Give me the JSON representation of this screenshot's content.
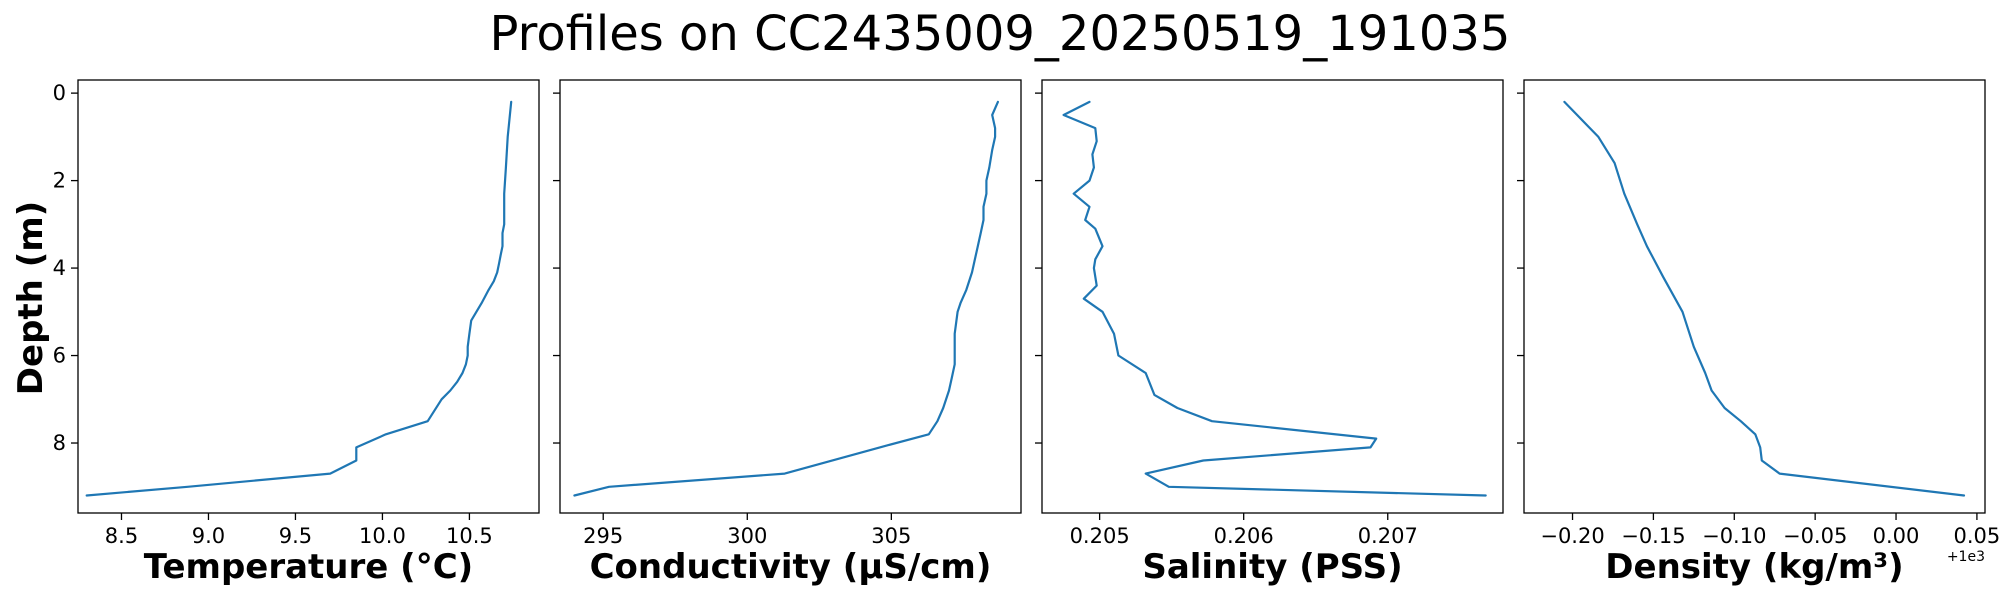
{
  "figure": {
    "title": "Profiles on CC2435009_20250519_191035",
    "line_color": "#1f77b4"
  },
  "chart_data": [
    {
      "type": "line",
      "xlabel": "Temperature (°C)",
      "ylabel": "Depth (m)",
      "xlim": [
        8.25,
        10.9
      ],
      "ylim": [
        9.6,
        -0.3
      ],
      "xticks": [
        8.5,
        9.0,
        9.5,
        10.0,
        10.5
      ],
      "xtick_labels": [
        "8.5",
        "9.0",
        "9.5",
        "10.0",
        "10.5"
      ],
      "yticks": [
        0,
        2,
        4,
        6,
        8
      ],
      "ytick_labels": [
        "0",
        "2",
        "4",
        "6",
        "8"
      ],
      "x_offset_label": "",
      "x": [
        10.74,
        10.72,
        10.71,
        10.7,
        10.7,
        10.7,
        10.69,
        10.69,
        10.68,
        10.67,
        10.66,
        10.64,
        10.61,
        10.57,
        10.54,
        10.51,
        10.5,
        10.49,
        10.49,
        10.48,
        10.46,
        10.43,
        10.39,
        10.34,
        10.26,
        10.02,
        9.85,
        9.85,
        9.7,
        8.88,
        8.3
      ],
      "y": [
        0.2,
        1.0,
        1.7,
        2.3,
        2.6,
        3.0,
        3.2,
        3.5,
        3.7,
        3.9,
        4.1,
        4.3,
        4.5,
        4.8,
        5.0,
        5.2,
        5.5,
        5.8,
        6.0,
        6.2,
        6.4,
        6.6,
        6.8,
        7.0,
        7.5,
        7.8,
        8.1,
        8.4,
        8.7,
        9.0,
        9.2
      ]
    },
    {
      "type": "line",
      "xlabel": "Conductivity (µS/cm)",
      "ylabel": "",
      "xlim": [
        293.5,
        309.5
      ],
      "ylim": [
        9.6,
        -0.3
      ],
      "xticks": [
        295,
        300,
        305
      ],
      "xtick_labels": [
        "295",
        "300",
        "305"
      ],
      "yticks": [
        0,
        2,
        4,
        6,
        8
      ],
      "ytick_labels": [],
      "x_offset_label": "",
      "x": [
        308.7,
        308.5,
        308.6,
        308.6,
        308.5,
        308.4,
        308.3,
        308.3,
        308.2,
        308.2,
        308.1,
        308.0,
        307.9,
        307.8,
        307.6,
        307.4,
        307.3,
        307.2,
        307.2,
        307.2,
        307.1,
        307.0,
        306.8,
        306.6,
        306.3,
        304.6,
        301.3,
        295.2,
        294.0
      ],
      "y": [
        0.2,
        0.5,
        0.8,
        1.0,
        1.3,
        1.7,
        2.0,
        2.3,
        2.6,
        2.9,
        3.2,
        3.5,
        3.8,
        4.1,
        4.5,
        4.8,
        5.0,
        5.5,
        6.0,
        6.2,
        6.5,
        6.8,
        7.2,
        7.5,
        7.8,
        8.1,
        8.7,
        9.0,
        9.2
      ]
    },
    {
      "type": "line",
      "xlabel": "Salinity (PSS)",
      "ylabel": "",
      "xlim": [
        0.2046,
        0.2078
      ],
      "ylim": [
        9.6,
        -0.3
      ],
      "xticks": [
        0.205,
        0.206,
        0.207
      ],
      "xtick_labels": [
        "0.205",
        "0.206",
        "0.207"
      ],
      "yticks": [
        0,
        2,
        4,
        6,
        8
      ],
      "ytick_labels": [],
      "x_offset_label": "",
      "x": [
        0.20493,
        0.20475,
        0.20497,
        0.20498,
        0.20495,
        0.20496,
        0.20493,
        0.20482,
        0.20493,
        0.2049,
        0.20497,
        0.20502,
        0.20497,
        0.20496,
        0.20498,
        0.20489,
        0.20502,
        0.2051,
        0.20513,
        0.20532,
        0.20538,
        0.20554,
        0.20578,
        0.20692,
        0.20688,
        0.20572,
        0.20532,
        0.20548,
        0.20768
      ],
      "y": [
        0.2,
        0.5,
        0.8,
        1.1,
        1.4,
        1.7,
        2.0,
        2.3,
        2.6,
        2.9,
        3.1,
        3.5,
        3.8,
        4.0,
        4.4,
        4.7,
        5.0,
        5.5,
        6.0,
        6.4,
        6.9,
        7.2,
        7.5,
        7.9,
        8.1,
        8.4,
        8.7,
        9.0,
        9.2
      ]
    },
    {
      "type": "line",
      "xlabel": "Density (kg/m³)",
      "ylabel": "",
      "xlim": [
        999.77,
        1000.055
      ],
      "ylim": [
        9.6,
        -0.3
      ],
      "xticks": [
        999.8,
        999.85,
        999.9,
        999.95,
        1000.0,
        1000.05
      ],
      "xtick_labels": [
        "−0.20",
        "−0.15",
        "−0.10",
        "−0.05",
        "0.00",
        "0.05"
      ],
      "yticks": [
        0,
        2,
        4,
        6,
        8
      ],
      "ytick_labels": [],
      "x_offset_label": "+1e3",
      "x": [
        999.795,
        999.816,
        999.826,
        999.832,
        999.84,
        999.846,
        999.856,
        999.868,
        999.875,
        999.882,
        999.886,
        999.894,
        999.904,
        999.913,
        999.916,
        999.917,
        999.928,
        1000.042
      ],
      "y": [
        0.2,
        1.0,
        1.6,
        2.3,
        3.0,
        3.5,
        4.2,
        5.0,
        5.8,
        6.4,
        6.8,
        7.2,
        7.5,
        7.8,
        8.1,
        8.4,
        8.7,
        9.2
      ]
    }
  ]
}
